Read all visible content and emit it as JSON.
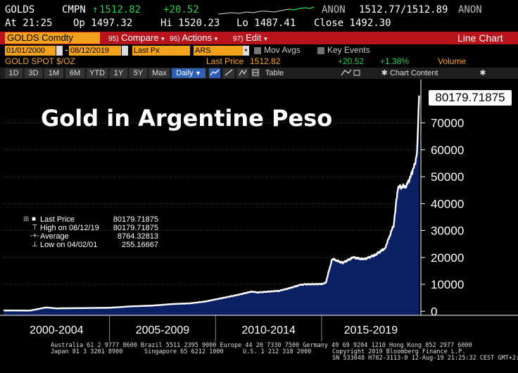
{
  "quote": {
    "ticker": "GOLDS",
    "exch": "CMPN",
    "price": "1512.82",
    "change": "+20.52",
    "source": "ANON",
    "bid_ask": "1512.77/1512.89",
    "source2": "ANON",
    "time": "At 21:25",
    "open": "Op 1497.32",
    "high": "Hi 1520.23",
    "low": "Lo 1487.41",
    "close": "Close 1492.30"
  },
  "toolbar": {
    "security": "GOLDS Comdty",
    "compare": "Compare",
    "compare_num": "95)",
    "actions": "Actions",
    "actions_num": "96)",
    "edit": "Edit",
    "edit_num": "97)",
    "view": "Line Chart"
  },
  "settings": {
    "start_date": "01/01/2000",
    "end_date": "08/12/2019",
    "field": "Last Px",
    "currency": "ARS",
    "mov_avgs": "Mov Avgs",
    "key_events": "Key Events"
  },
  "info": {
    "name": "GOLD SPOT $/OZ",
    "last_price_label": "Last Price",
    "last_price": "1512.82",
    "change": "+20.52",
    "pct": "+1.38%",
    "volume_label": "Volume"
  },
  "periods": [
    "1D",
    "3D",
    "1M",
    "6M",
    "YTD",
    "1Y",
    "5Y",
    "Max"
  ],
  "freq": "Daily",
  "table_label": "Table",
  "chart_content_label": "Chart Content",
  "colors": {
    "accent_amber": "#f2a21c",
    "bar_red": "#b8141c",
    "up_green": "#22d24b",
    "area_fill": "#0b1f63",
    "line": "#ffffff"
  },
  "chart_data": {
    "type": "area",
    "title": "Gold in Argentine Peso",
    "last_value_label": "80179.71875",
    "x": [
      2000.0,
      2001.0,
      2001.25,
      2002.0,
      2002.5,
      2003.0,
      2004.0,
      2005.0,
      2006.0,
      2007.0,
      2008.0,
      2008.8,
      2009.5,
      2010.0,
      2011.0,
      2011.7,
      2012.0,
      2013.0,
      2013.5,
      2014.0,
      2014.2,
      2015.0,
      2015.2,
      2015.5,
      2016.0,
      2016.5,
      2017.0,
      2017.5,
      2018.0,
      2018.4,
      2018.6,
      2019.0,
      2019.3,
      2019.5,
      2019.6
    ],
    "values": [
      290,
      270,
      255,
      1400,
      1080,
      1130,
      1200,
      1300,
      1820,
      2100,
      2700,
      2950,
      3600,
      4400,
      6000,
      7300,
      7000,
      7600,
      8600,
      9800,
      10000,
      10100,
      10600,
      19500,
      18000,
      20000,
      19300,
      20800,
      23500,
      32000,
      46000,
      46500,
      52000,
      58000,
      80179.71875
    ],
    "yticks": [
      0,
      10000,
      20000,
      30000,
      40000,
      50000,
      60000,
      70000
    ],
    "ytick_labels": [
      "0",
      "10000",
      "20000",
      "30000",
      "40000",
      "50000",
      "60000",
      "70000"
    ],
    "ylim": [
      -1500,
      83500
    ],
    "xlim": [
      2000.0,
      2019.65
    ],
    "x_bands": [
      "2000-2004",
      "2005-2009",
      "2010-2014",
      "2015-2019"
    ],
    "legend": [
      {
        "label": "Last Price",
        "value": "80179.71875",
        "marker": "square"
      },
      {
        "label": "High on 08/12/19",
        "value": "80179.71875",
        "marker": "high"
      },
      {
        "label": "Average",
        "value": "8764.32813",
        "marker": "avg"
      },
      {
        "label": "Low on 04/02/01",
        "value": "255.16667",
        "marker": "low"
      }
    ]
  },
  "footer": {
    "line1": "Australia 61 2 9777 8600 Brazil 5511 2395 9000 Europe 44 20 7330 7500 Germany 49 69 9204 1210 Hong Kong 852 2977 6000",
    "line2a": "Japan 81 3 3201 8900",
    "line2b": "Singapore 65 6212 1000",
    "line2c": "U.S. 1 212 318 2000",
    "line2d": "Copyright 2019 Bloomberg Finance L.P.",
    "line3": "SN 533048 H782-3113-0 12-Aug-19 21:25:32 CEST GMT+2:00"
  }
}
